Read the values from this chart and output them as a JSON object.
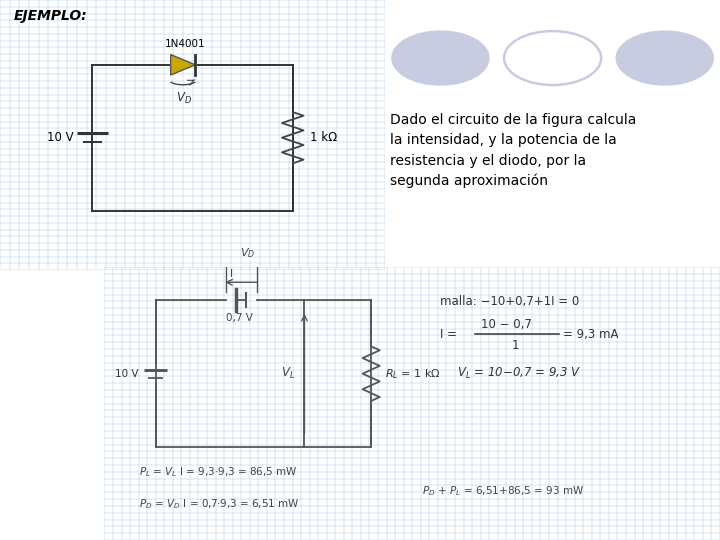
{
  "bg_white": "#ffffff",
  "bg_blue": "#c5ddf0",
  "grid_color": "#a8c8e8",
  "title": "EJEMPLO:",
  "diode_label": "1N4001",
  "voltage_label": "10 V",
  "resistor_label": "1 kΩ",
  "circle_fill": "#c8cce0",
  "circle_outline": "#c8cce0",
  "text_desc": "Dado el circuito de la figura calcula\nla intensidad, y la potencia de la\nresistencia y el diodo, por la\nsegunda aproximación",
  "sol_malla": "malla: −10+0,7+1I = 0",
  "sol_i_num": "10 − 0,7",
  "sol_i_den": "1",
  "sol_i_res": "= 9,3 mA",
  "sol_vl": "Vₗ = 10−0,7 = 9,3 V",
  "sol_pl": "Pₗ = Vₗ I = 9,3·9,3 = 86,5 mW",
  "sol_pd": "Pᴅ = Vᴅ I = 0,7·9,3 = 6,51 mW",
  "sol_tot": "Pᴅ + Pₗ = 6,51+86,5 = 93 mW"
}
